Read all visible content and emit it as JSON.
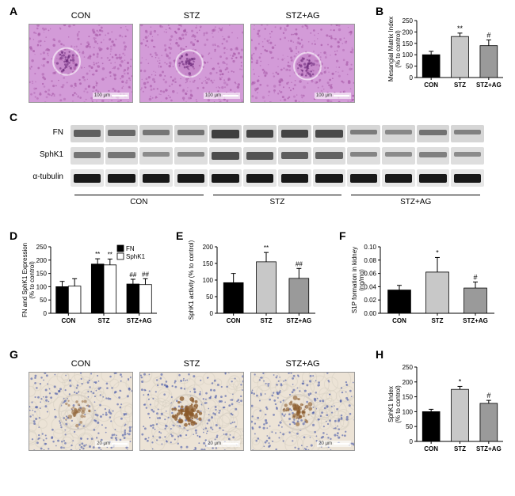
{
  "groups": [
    "CON",
    "STZ",
    "STZ+AG"
  ],
  "panelA": {
    "label": "A",
    "micrograph_bg": "#d39bd8",
    "scale_text": "100 μm"
  },
  "panelB": {
    "label": "B",
    "ylabel": "Mesangial Matrix Index\n(% to control)",
    "ylim": [
      0,
      250
    ],
    "ytick_step": 50,
    "bars": [
      {
        "label": "CON",
        "value": 100,
        "err": 15,
        "fill": "#000000",
        "annot": ""
      },
      {
        "label": "STZ",
        "value": 180,
        "err": 15,
        "fill": "#c8c8c8",
        "annot": "**"
      },
      {
        "label": "STZ+AG",
        "value": 140,
        "err": 25,
        "fill": "#9a9a9a",
        "annot": "#"
      }
    ],
    "axis_fontsize": 8,
    "label_fontsize": 8,
    "annot_fontsize": 9,
    "bar_width": 0.6,
    "bg": "#ffffff",
    "axis_color": "#000000"
  },
  "panelC": {
    "label": "C",
    "rows": [
      {
        "name": "FN",
        "intens": [
          0.65,
          0.55,
          0.4,
          0.45,
          0.95,
          0.9,
          0.9,
          0.85,
          0.35,
          0.25,
          0.45,
          0.3
        ],
        "bg": "#d6d6d6",
        "band": "#3a3a3a"
      },
      {
        "name": "SphK1",
        "intens": [
          0.5,
          0.5,
          0.3,
          0.35,
          0.9,
          0.85,
          0.75,
          0.7,
          0.35,
          0.3,
          0.4,
          0.3
        ],
        "bg": "#dedede",
        "band": "#444444"
      },
      {
        "name": "α-tubulin",
        "intens": [
          0.95,
          0.95,
          0.95,
          0.95,
          0.95,
          0.95,
          0.95,
          0.95,
          0.95,
          0.95,
          0.95,
          0.95
        ],
        "bg": "#e6e6e6",
        "band": "#111111"
      }
    ],
    "lane_count": 12
  },
  "panelD": {
    "label": "D",
    "ylabel": "FN and SphK1 Expression\n(% to control)",
    "ylim": [
      0,
      250
    ],
    "ytick_step": 50,
    "legend": [
      {
        "name": "FN",
        "fill": "#000000"
      },
      {
        "name": "SphK1",
        "fill": "#ffffff",
        "stroke": "#000"
      }
    ],
    "groups": [
      "CON",
      "STZ",
      "STZ+AG"
    ],
    "series": [
      {
        "name": "FN",
        "fill": "#000000",
        "stroke": "#000",
        "values": [
          100,
          185,
          110
        ],
        "err": [
          20,
          20,
          18
        ],
        "annot": [
          "",
          "**",
          "##"
        ]
      },
      {
        "name": "SphK1",
        "fill": "#ffffff",
        "stroke": "#000",
        "values": [
          102,
          182,
          108
        ],
        "err": [
          28,
          22,
          22
        ],
        "annot": [
          "",
          "**",
          "##"
        ]
      }
    ],
    "axis_fontsize": 8,
    "label_fontsize": 8,
    "annot_fontsize": 8,
    "bar_width": 0.35
  },
  "panelE": {
    "label": "E",
    "ylabel": "SphK1 activity (% to control)",
    "ylim": [
      0,
      200
    ],
    "ytick_step": 50,
    "bars": [
      {
        "label": "CON",
        "value": 92,
        "err": 28,
        "fill": "#000000",
        "annot": ""
      },
      {
        "label": "STZ",
        "value": 155,
        "err": 28,
        "fill": "#c8c8c8",
        "annot": "**"
      },
      {
        "label": "STZ+AG",
        "value": 105,
        "err": 30,
        "fill": "#9a9a9a",
        "annot": "##"
      }
    ],
    "axis_fontsize": 8,
    "label_fontsize": 8,
    "annot_fontsize": 8,
    "bar_width": 0.6
  },
  "panelF": {
    "label": "F",
    "ylabel": "S1P formation in kidney\n(ng/mg)",
    "ylim": [
      0.0,
      0.1
    ],
    "ytick_step": 0.02,
    "bars": [
      {
        "label": "CON",
        "value": 0.035,
        "err": 0.007,
        "fill": "#000000",
        "annot": ""
      },
      {
        "label": "STZ",
        "value": 0.062,
        "err": 0.022,
        "fill": "#c8c8c8",
        "annot": "*"
      },
      {
        "label": "STZ+AG",
        "value": 0.038,
        "err": 0.009,
        "fill": "#9a9a9a",
        "annot": "#"
      }
    ],
    "axis_fontsize": 8,
    "label_fontsize": 8,
    "annot_fontsize": 9,
    "bar_width": 0.6
  },
  "panelG": {
    "label": "G",
    "micrograph_bg": "#ece3d6",
    "scale_text": "20 μm"
  },
  "panelH": {
    "label": "H",
    "ylabel": "SphK1 Index\n(% to control)",
    "ylim": [
      0,
      250
    ],
    "ytick_step": 50,
    "bars": [
      {
        "label": "CON",
        "value": 100,
        "err": 8,
        "fill": "#000000",
        "annot": ""
      },
      {
        "label": "STZ",
        "value": 175,
        "err": 10,
        "fill": "#c8c8c8",
        "annot": "*"
      },
      {
        "label": "STZ+AG",
        "value": 128,
        "err": 10,
        "fill": "#9a9a9a",
        "annot": "#"
      }
    ],
    "axis_fontsize": 8,
    "label_fontsize": 8,
    "annot_fontsize": 9,
    "bar_width": 0.6
  }
}
